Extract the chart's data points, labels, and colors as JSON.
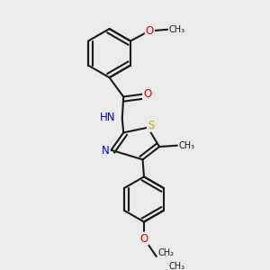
{
  "background_color": "#ebebeb",
  "bond_color": "#1a1a1a",
  "bond_width": 1.5,
  "atom_colors": {
    "N": "#0000cc",
    "O": "#ee0000",
    "S": "#bbaa00",
    "C": "#1a1a1a",
    "H": "#338888"
  },
  "font_size": 8.5,
  "fig_width": 3.0,
  "fig_height": 3.0,
  "dpi": 100,
  "xlim": [
    0.0,
    1.0
  ],
  "ylim": [
    0.0,
    1.0
  ]
}
